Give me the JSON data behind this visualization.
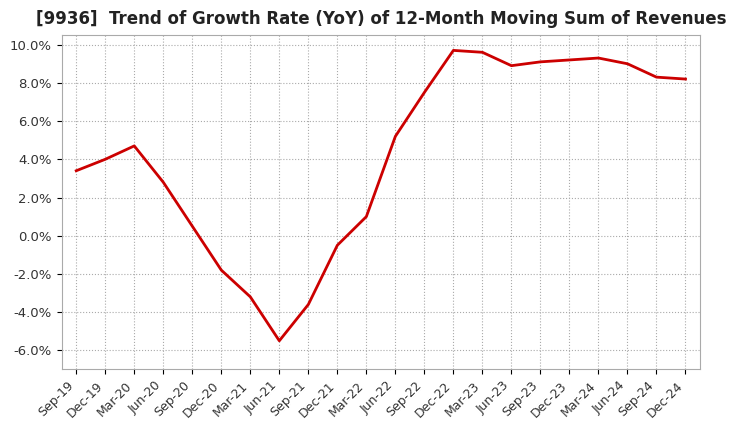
{
  "title": "[9936]  Trend of Growth Rate (YoY) of 12-Month Moving Sum of Revenues",
  "title_fontsize": 12,
  "line_color": "#cc0000",
  "background_color": "#ffffff",
  "grid_color": "#aaaaaa",
  "ylim": [
    -0.07,
    0.105
  ],
  "yticks": [
    -0.06,
    -0.04,
    -0.02,
    0.0,
    0.02,
    0.04,
    0.06,
    0.08,
    0.1
  ],
  "ytick_labels": [
    "-6.0%",
    "-4.0%",
    "-2.0%",
    "0.0%",
    "2.0%",
    "4.0%",
    "6.0%",
    "8.0%",
    "10.0%"
  ],
  "x_labels": [
    "Sep-19",
    "Dec-19",
    "Mar-20",
    "Jun-20",
    "Sep-20",
    "Dec-20",
    "Mar-21",
    "Jun-21",
    "Sep-21",
    "Dec-21",
    "Mar-22",
    "Jun-22",
    "Sep-22",
    "Dec-22",
    "Mar-23",
    "Jun-23",
    "Sep-23",
    "Dec-23",
    "Mar-24",
    "Jun-24",
    "Sep-24",
    "Dec-24"
  ],
  "values": [
    0.034,
    0.04,
    0.047,
    0.028,
    0.005,
    -0.018,
    -0.032,
    -0.055,
    -0.036,
    -0.005,
    0.01,
    0.052,
    0.075,
    0.097,
    0.096,
    0.089,
    0.091,
    0.092,
    0.093,
    0.09,
    0.083,
    0.082
  ]
}
